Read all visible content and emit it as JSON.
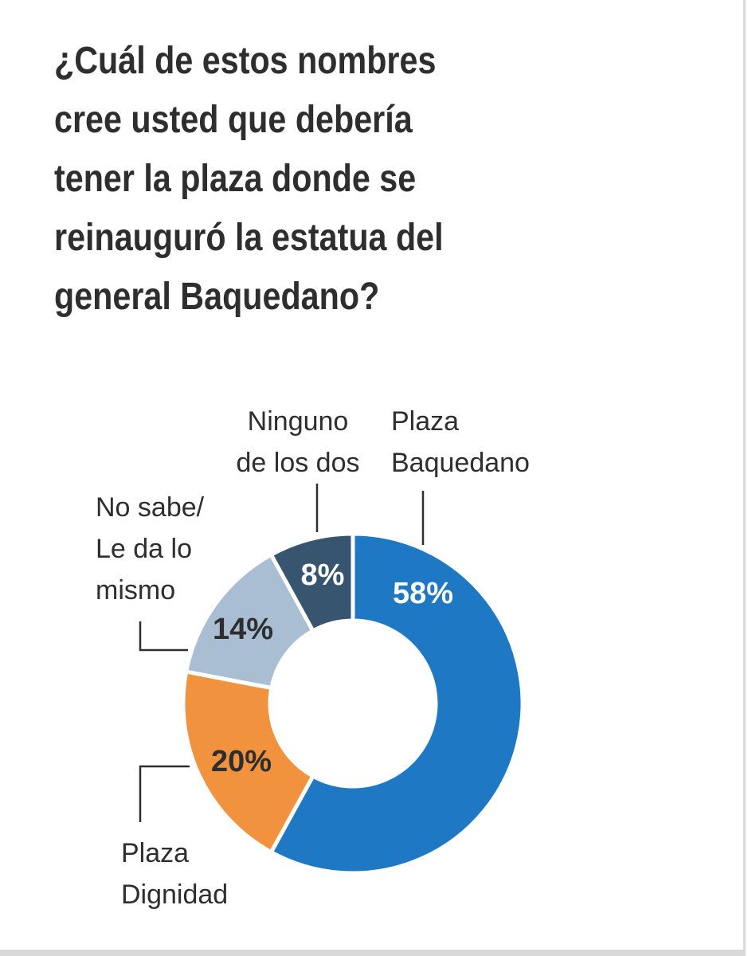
{
  "question": "¿Cuál de estos nombres\ncree usted que debería\ntener la plaza donde se\nreinauguró la estatua del\ngeneral Baquedano?",
  "chart_data": {
    "type": "pie",
    "donut": true,
    "title": "¿Cuál de estos nombres cree usted que debería tener la plaza donde se reinauguró la estatua del general Baquedano?",
    "categories": [
      "Plaza Baquedano",
      "Plaza Dignidad",
      "No sabe/ Le da lo mismo",
      "Ninguno de los dos"
    ],
    "values": [
      58,
      20,
      14,
      8
    ],
    "value_labels": [
      "58%",
      "20%",
      "14%",
      "8%"
    ],
    "label_lines": [
      [
        "Plaza",
        "Baquedano"
      ],
      [
        "Plaza",
        "Dignidad"
      ],
      [
        "No sabe/",
        "Le da lo",
        "mismo"
      ],
      [
        "Ninguno",
        "de los dos"
      ]
    ],
    "colors": [
      "#1f78c3",
      "#f0923e",
      "#a9bdd3",
      "#37556f"
    ],
    "value_label_colors": [
      "#ffffff",
      "#2e2e2e",
      "#2e2e2e",
      "#ffffff"
    ],
    "start_angle": "12 o'clock",
    "direction": "clockwise",
    "legend": "none"
  }
}
